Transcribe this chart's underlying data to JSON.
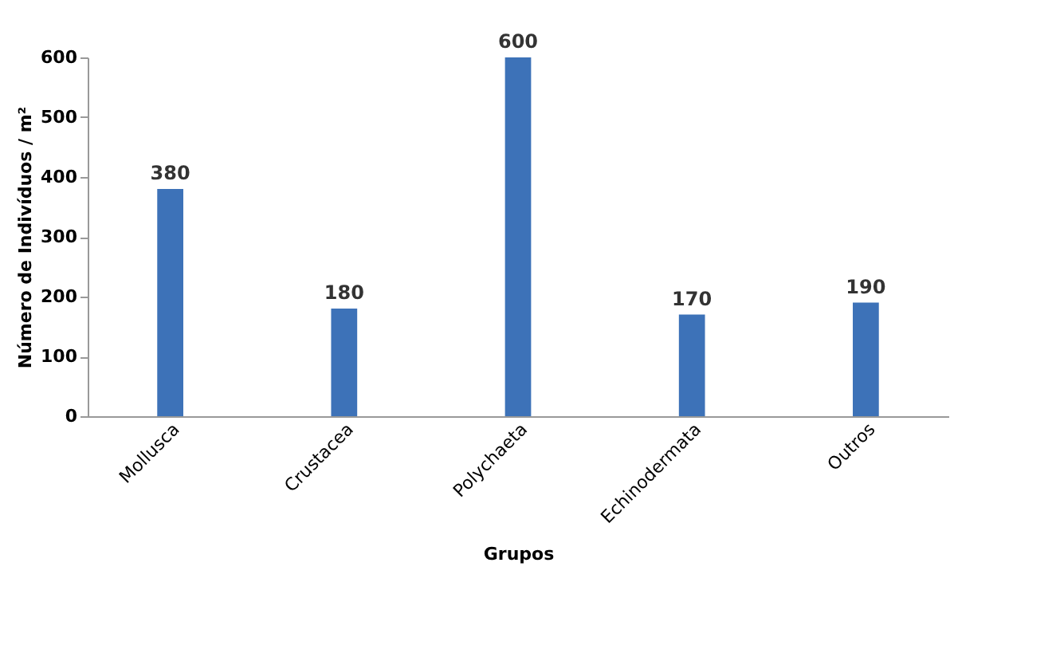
{
  "chart_data": {
    "type": "bar",
    "categories": [
      "Mollusca",
      "Crustacea",
      "Polychaeta",
      "Echinodermata",
      "Outros"
    ],
    "values": [
      380,
      180,
      600,
      170,
      190
    ],
    "color": "#3d72b8",
    "xlabel": "Grupos",
    "ylabel": "Número de Indivíduos / m²",
    "ylim": [
      0,
      600
    ],
    "yticks": [
      0,
      100,
      200,
      300,
      400,
      500,
      600
    ],
    "data_labels": true,
    "grid": false
  }
}
